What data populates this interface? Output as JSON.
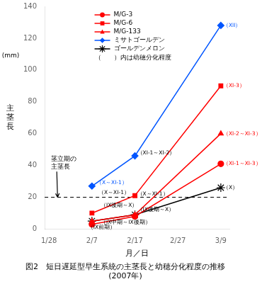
{
  "chart_data": {
    "type": "line",
    "xlabel": "月／日",
    "ylabel": "主\n茎\n長",
    "ylabel_unit": "(mm)",
    "caption": [
      "図2　短日遅延型早生系統の主茎長と幼穂分化程度の推移",
      "(2007年)"
    ],
    "xlim": [
      -1,
      42
    ],
    "xticks": [
      {
        "value": 0,
        "label": "1/28"
      },
      {
        "value": 10,
        "label": "2/7"
      },
      {
        "value": 20,
        "label": "2/17"
      },
      {
        "value": 30,
        "label": "2/27"
      },
      {
        "value": 40,
        "label": "3/9"
      }
    ],
    "ylim": [
      0,
      140
    ],
    "yticks": [
      0,
      20,
      40,
      60,
      80,
      100,
      120,
      140
    ],
    "grid": false,
    "legend": "upper left",
    "legend_note": "（　　）内は幼穂分化程度",
    "x": [
      10,
      20,
      40
    ],
    "series": [
      {
        "name": "M/G-3",
        "color": "#FF0000",
        "marker": "circle",
        "values": [
          3,
          8,
          41
        ]
      },
      {
        "name": "M/G-6",
        "color": "#FF0000",
        "marker": "square",
        "values": [
          10,
          21,
          90
        ]
      },
      {
        "name": "M/G-133",
        "color": "#FF0000",
        "marker": "triangle",
        "values": [
          5,
          9,
          60
        ]
      },
      {
        "name": "ミサトゴールデン",
        "color": "#0055FF",
        "marker": "diamond",
        "values": [
          27,
          46,
          128
        ]
      },
      {
        "name": "ゴールデンメロン",
        "color": "#000000",
        "marker": "star",
        "values": [
          5,
          9,
          26
        ]
      }
    ],
    "hline": {
      "y": 20,
      "line_style": "dashed",
      "color": "#000000"
    },
    "arrow": {
      "text": "茎立期の\n主茎長",
      "x": 2,
      "y": 20,
      "text_x": 0.5,
      "text_y": 37
    },
    "annotations": [
      {
        "x": 40.5,
        "y": 90,
        "text": "（XI-3）",
        "color": "#FF0000"
      },
      {
        "x": 40.5,
        "y": 60,
        "text": "（XI-2～XI-3）",
        "color": "#FF0000"
      },
      {
        "x": 40.5,
        "y": 41,
        "text": "（XI-1～XI-3）",
        "color": "#FF0000"
      },
      {
        "x": 40.5,
        "y": 128,
        "text": "（XII）",
        "color": "#0055FF"
      },
      {
        "x": 40.5,
        "y": 26,
        "text": "（X）",
        "color": "#000000"
      },
      {
        "x": 11,
        "y": 29,
        "text": "（X～XI-1）",
        "color": "#0055FF"
      },
      {
        "x": 20.5,
        "y": 48,
        "text": "（XI-1～XI-2）",
        "color": "#000000"
      },
      {
        "x": 11.5,
        "y": 23,
        "text": "（X～XI-1）",
        "color": "#000000"
      },
      {
        "x": 12,
        "y": 15,
        "text": "（IX後期～X）",
        "color": "#000000"
      },
      {
        "x": 20.5,
        "y": 22,
        "text": "（X～XI-1）",
        "color": "#000000"
      },
      {
        "x": 20.5,
        "y": 12,
        "text": "（IX後期～X）",
        "color": "#000000"
      },
      {
        "x": 12,
        "y": 4,
        "text": "（IX中期～IX後期）",
        "color": "#000000"
      },
      {
        "x": 9,
        "y": 1,
        "text": "（IX前期）",
        "color": "#000000"
      }
    ]
  }
}
